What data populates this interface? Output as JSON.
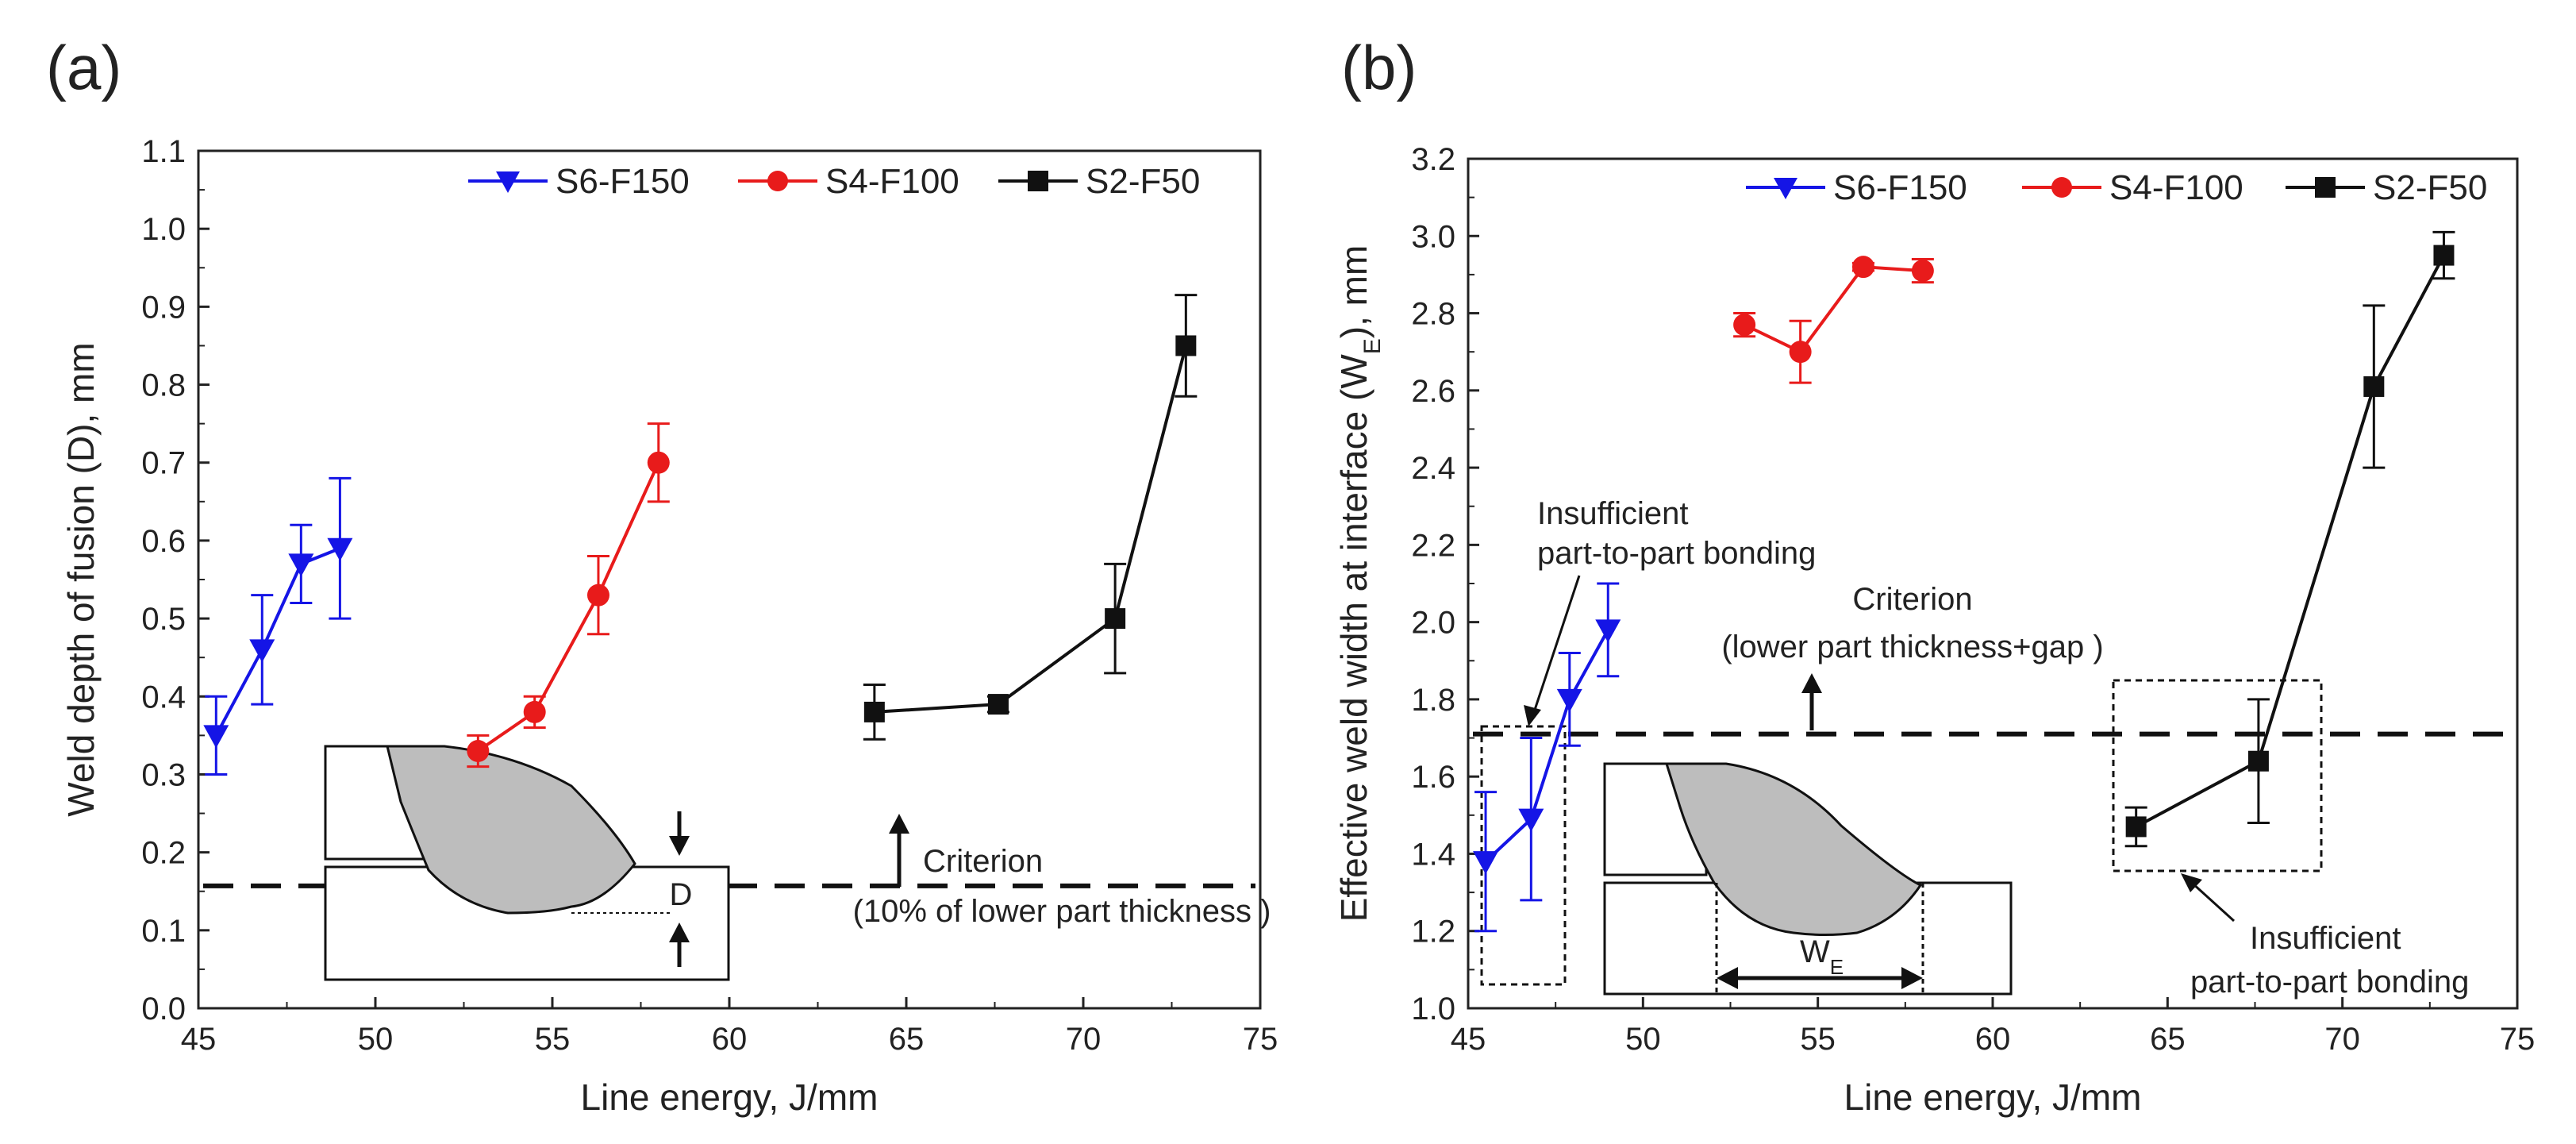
{
  "chart_data": [
    {
      "id": "a",
      "type": "line",
      "panel_label": "(a)",
      "xlabel": "Line energy, J/mm",
      "ylabel": "Weld depth of fusion (D), mm",
      "xlim": [
        45,
        75
      ],
      "ylim": [
        0.0,
        1.1
      ],
      "x_ticks": [
        "45",
        "50",
        "55",
        "60",
        "65",
        "70",
        "75"
      ],
      "y_ticks": [
        "0.0",
        "0.1",
        "0.2",
        "0.3",
        "0.4",
        "0.5",
        "0.6",
        "0.7",
        "0.8",
        "0.9",
        "1.0",
        "1.1"
      ],
      "series": [
        {
          "name": "S6-F150",
          "color": "#1515e6",
          "marker": "triangle-down",
          "x": [
            45.5,
            46.8,
            47.9,
            49.0
          ],
          "y": [
            0.35,
            0.46,
            0.57,
            0.59
          ],
          "err": [
            0.05,
            0.07,
            0.05,
            0.09
          ]
        },
        {
          "name": "S4-F100",
          "color": "#e81b1b",
          "marker": "circle",
          "x": [
            52.9,
            54.5,
            56.3,
            58.0
          ],
          "y": [
            0.33,
            0.38,
            0.53,
            0.7
          ],
          "err": [
            0.02,
            0.02,
            0.05,
            0.05
          ]
        },
        {
          "name": "S2-F50",
          "color": "#111111",
          "marker": "square",
          "x": [
            64.1,
            67.6,
            70.9,
            72.9
          ],
          "y": [
            0.38,
            0.39,
            0.5,
            0.85
          ],
          "err": [
            0.035,
            0.01,
            0.07,
            0.065
          ]
        }
      ],
      "criterion": {
        "y": 0.157,
        "label": "Criterion",
        "note": "(10% of lower part thickness )"
      },
      "inset_label": "D"
    },
    {
      "id": "b",
      "type": "line",
      "panel_label": "(b)",
      "xlabel": "Line energy, J/mm",
      "ylabel_main": "Effective weld width at interface (W",
      "ylabel_sub": "E",
      "ylabel_tail": "), mm",
      "xlim": [
        45,
        75
      ],
      "ylim": [
        1.0,
        3.2
      ],
      "x_ticks": [
        "45",
        "50",
        "55",
        "60",
        "65",
        "70",
        "75"
      ],
      "y_ticks": [
        "1.0",
        "1.2",
        "1.4",
        "1.6",
        "1.8",
        "2.0",
        "2.2",
        "2.4",
        "2.6",
        "2.8",
        "3.0",
        "3.2"
      ],
      "series": [
        {
          "name": "S6-F150",
          "color": "#1515e6",
          "marker": "triangle-down",
          "x": [
            45.5,
            46.8,
            47.9,
            49.0
          ],
          "y": [
            1.38,
            1.49,
            1.8,
            1.98
          ],
          "err": [
            0.18,
            0.21,
            0.12,
            0.12
          ]
        },
        {
          "name": "S4-F100",
          "color": "#e81b1b",
          "marker": "circle",
          "x": [
            52.9,
            54.5,
            56.3,
            58.0
          ],
          "y": [
            2.77,
            2.7,
            2.92,
            2.91
          ],
          "err": [
            0.03,
            0.08,
            0.01,
            0.03
          ]
        },
        {
          "name": "S2-F50",
          "color": "#111111",
          "marker": "square",
          "x": [
            64.1,
            67.6,
            70.9,
            72.9
          ],
          "y": [
            1.47,
            1.64,
            2.61,
            2.95
          ],
          "err": [
            0.05,
            0.16,
            0.21,
            0.06
          ]
        }
      ],
      "criterion": {
        "y": 1.71,
        "label": "Criterion",
        "note": "(lower part thickness+gap )"
      },
      "annotation_left": [
        "Insufficient",
        "part-to-part bonding"
      ],
      "annotation_right": [
        "Insufficient",
        "part-to-part bonding"
      ],
      "inset_label_main": "W",
      "inset_label_sub": "E"
    }
  ]
}
